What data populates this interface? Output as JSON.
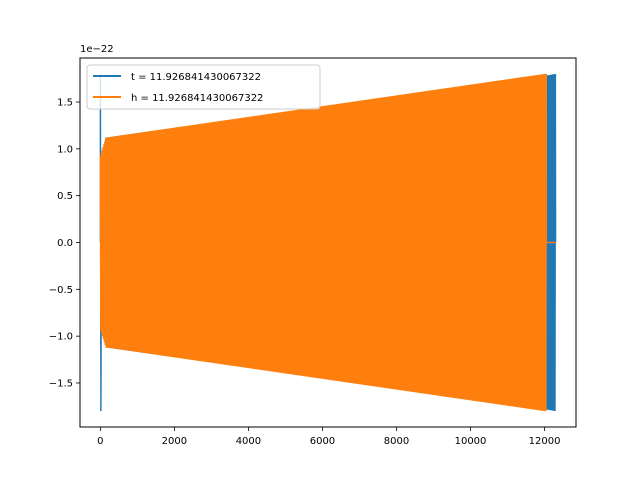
{
  "chart_data": {
    "type": "line",
    "offset_text": "1e−22",
    "x_ticks": [
      0,
      2000,
      4000,
      6000,
      8000,
      10000,
      12000
    ],
    "x_tick_labels": [
      "0",
      "2000",
      "4000",
      "6000",
      "8000",
      "10000",
      "12000"
    ],
    "y_ticks": [
      -1.5,
      -1.0,
      -0.5,
      0.0,
      0.5,
      1.0,
      1.5
    ],
    "y_tick_labels": [
      "−1.5",
      "−1.0",
      "−0.5",
      "0.0",
      "0.5",
      "1.0",
      "1.5"
    ],
    "xlim": [
      -550,
      12850
    ],
    "ylim": [
      -1.97,
      1.97
    ],
    "legend_position": "upper left",
    "series": [
      {
        "name": "t = 11.926841430067322",
        "color": "#1f77b4",
        "x_range": [
          0,
          12300
        ],
        "initial_spike": 1.8,
        "envelope": {
          "x": [
            150,
            12000,
            12300
          ],
          "amplitude": [
            1.12,
            1.78,
            1.8
          ]
        },
        "mean": 0.0
      },
      {
        "name": "h = 11.926841430067322",
        "color": "#ff7f0e",
        "x_range": [
          0,
          12300
        ],
        "envelope": {
          "x": [
            0,
            150,
            12000,
            12050
          ],
          "amplitude": [
            0.92,
            1.12,
            1.8,
            1.8
          ]
        },
        "mean": 0.0
      }
    ]
  }
}
